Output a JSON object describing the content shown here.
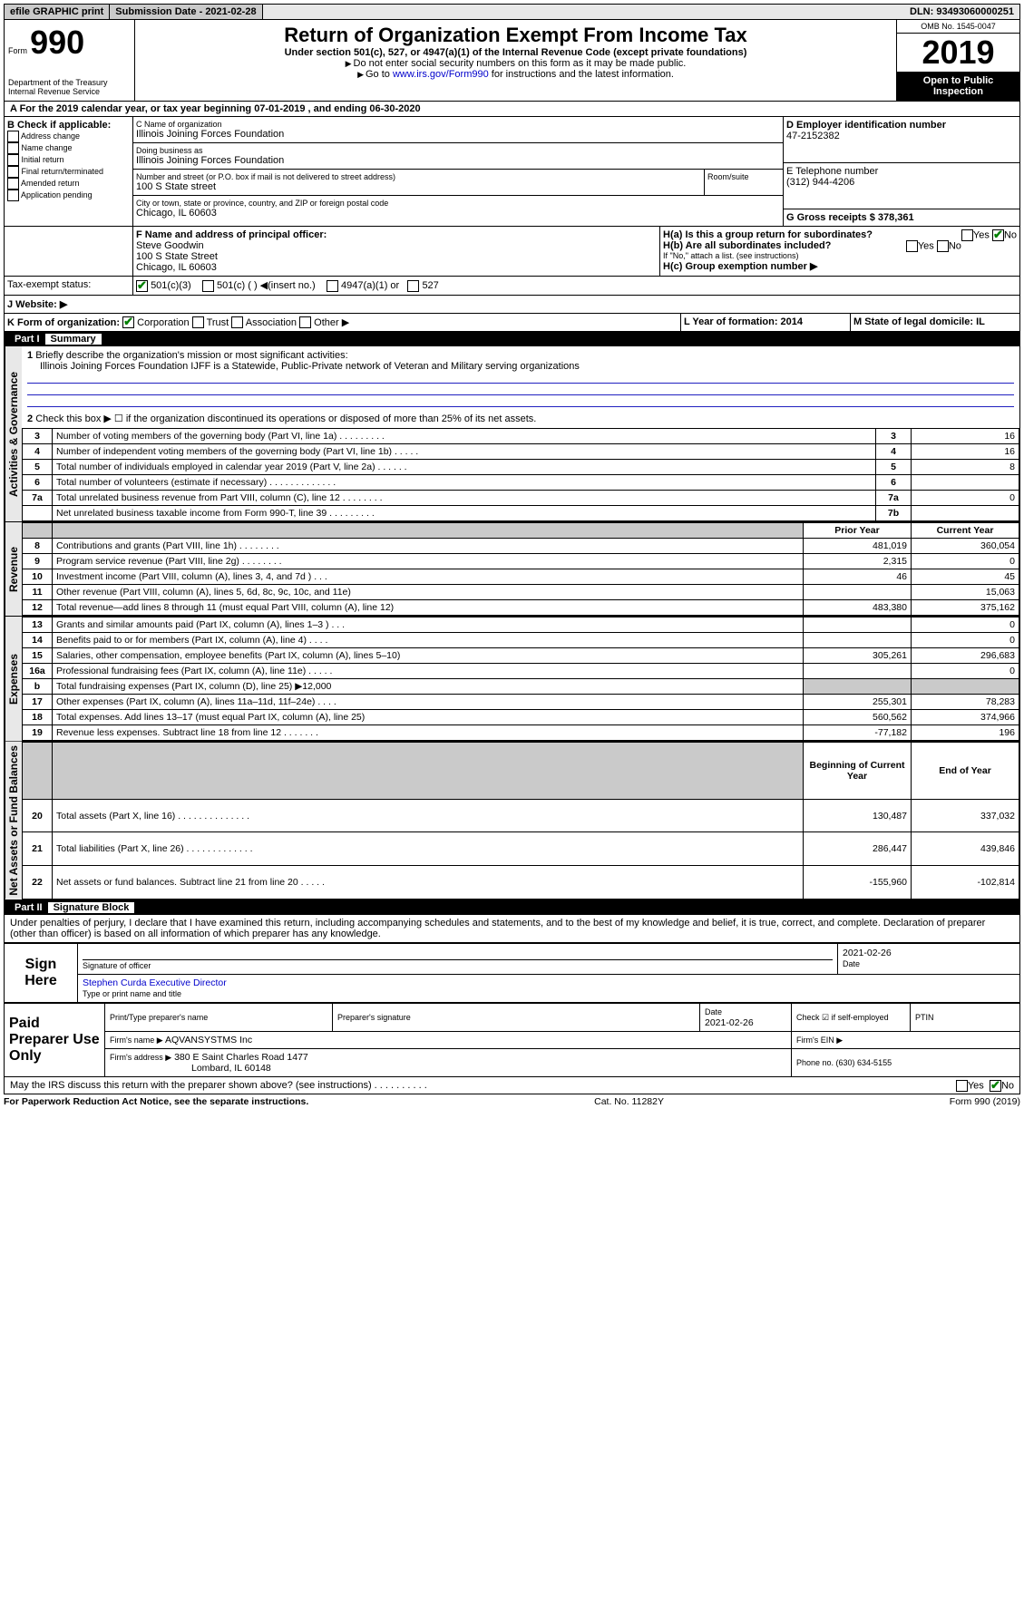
{
  "topbar": {
    "efile": "efile GRAPHIC print",
    "submission_label": "Submission Date - 2021-02-28",
    "dln": "DLN: 93493060000251"
  },
  "header": {
    "form_prefix": "Form",
    "form_number": "990",
    "title": "Return of Organization Exempt From Income Tax",
    "subtitle": "Under section 501(c), 527, or 4947(a)(1) of the Internal Revenue Code (except private foundations)",
    "note1": "Do not enter social security numbers on this form as it may be made public.",
    "note2_pre": "Go to ",
    "note2_link": "www.irs.gov/Form990",
    "note2_post": " for instructions and the latest information.",
    "dept": "Department of the Treasury",
    "irs": "Internal Revenue Service",
    "omb": "OMB No. 1545-0047",
    "year": "2019",
    "open": "Open to Public Inspection"
  },
  "period": {
    "text_a": "A For the 2019 calendar year, or tax year beginning 07-01-2019   , and ending 06-30-2020"
  },
  "boxB": {
    "label": "B Check if applicable:",
    "items": [
      "Address change",
      "Name change",
      "Initial return",
      "Final return/terminated",
      "Amended return",
      "Application pending"
    ]
  },
  "boxC": {
    "label": "C Name of organization",
    "name": "Illinois Joining Forces Foundation",
    "dba_label": "Doing business as",
    "dba": "Illinois Joining Forces Foundation",
    "addr_label": "Number and street (or P.O. box if mail is not delivered to street address)",
    "room_label": "Room/suite",
    "street": "100 S State street",
    "city_label": "City or town, state or province, country, and ZIP or foreign postal code",
    "city": "Chicago, IL  60603"
  },
  "boxD": {
    "label": "D Employer identification number",
    "value": "47-2152382"
  },
  "boxE": {
    "label": "E Telephone number",
    "value": "(312) 944-4206"
  },
  "boxG": {
    "label": "G Gross receipts $ 378,361"
  },
  "boxF": {
    "label": "F  Name and address of principal officer:",
    "name": "Steve Goodwin",
    "street": "100 S State Street",
    "city": "Chicago, IL  60603"
  },
  "boxH": {
    "ha": "H(a)  Is this a group return for subordinates?",
    "hb": "H(b)  Are all subordinates included?",
    "hb_note": "If \"No,\" attach a list. (see instructions)",
    "hc": "H(c)  Group exemption number ▶",
    "yes": "Yes",
    "no": "No"
  },
  "boxI": {
    "label": "Tax-exempt status:",
    "opt1": "501(c)(3)",
    "opt2": "501(c) (  ) ◀(insert no.)",
    "opt3": "4947(a)(1) or",
    "opt4": "527"
  },
  "boxJ": {
    "label": "J   Website: ▶"
  },
  "boxK": {
    "label": "K Form of organization:",
    "opts": [
      "Corporation",
      "Trust",
      "Association",
      "Other ▶"
    ]
  },
  "boxL": {
    "label": "L Year of formation: 2014"
  },
  "boxM": {
    "label": "M State of legal domicile: IL"
  },
  "part1": {
    "label": "Part I",
    "title": "Summary",
    "vert_ag": "Activities & Governance",
    "vert_rev": "Revenue",
    "vert_exp": "Expenses",
    "vert_net": "Net Assets or Fund Balances",
    "l1": "Briefly describe the organization's mission or most significant activities:",
    "l1_text": "Illinois Joining Forces Foundation IJFF is a Statewide, Public-Private network of Veteran and Military serving organizations",
    "l2": "Check this box ▶ ☐  if the organization discontinued its operations or disposed of more than 25% of its net assets.",
    "rows_ag": [
      {
        "n": "3",
        "d": "Number of voting members of the governing body (Part VI, line 1a)  .   .   .   .   .   .   .   .   .",
        "b": "3",
        "v": "16"
      },
      {
        "n": "4",
        "d": "Number of independent voting members of the governing body (Part VI, line 1b)  .   .   .   .   .",
        "b": "4",
        "v": "16"
      },
      {
        "n": "5",
        "d": "Total number of individuals employed in calendar year 2019 (Part V, line 2a)  .   .   .   .   .   .",
        "b": "5",
        "v": "8"
      },
      {
        "n": "6",
        "d": "Total number of volunteers (estimate if necessary)  .   .   .   .   .   .   .   .   .   .   .   .   .",
        "b": "6",
        "v": ""
      },
      {
        "n": "7a",
        "d": "Total unrelated business revenue from Part VIII, column (C), line 12  .   .   .   .   .   .   .   .",
        "b": "7a",
        "v": "0"
      },
      {
        "n": "",
        "d": "Net unrelated business taxable income from Form 990-T, line 39  .   .   .   .   .   .   .   .   .",
        "b": "7b",
        "v": ""
      }
    ],
    "col_py": "Prior Year",
    "col_cy": "Current Year",
    "rows_rev": [
      {
        "n": "8",
        "d": "Contributions and grants (Part VIII, line 1h)  .   .   .   .   .   .   .   .",
        "py": "481,019",
        "cy": "360,054"
      },
      {
        "n": "9",
        "d": "Program service revenue (Part VIII, line 2g)  .   .   .   .   .   .   .   .",
        "py": "2,315",
        "cy": "0"
      },
      {
        "n": "10",
        "d": "Investment income (Part VIII, column (A), lines 3, 4, and 7d )  .   .   .",
        "py": "46",
        "cy": "45"
      },
      {
        "n": "11",
        "d": "Other revenue (Part VIII, column (A), lines 5, 6d, 8c, 9c, 10c, and 11e)",
        "py": "",
        "cy": "15,063"
      },
      {
        "n": "12",
        "d": "Total revenue—add lines 8 through 11 (must equal Part VIII, column (A), line 12)",
        "py": "483,380",
        "cy": "375,162"
      }
    ],
    "rows_exp": [
      {
        "n": "13",
        "d": "Grants and similar amounts paid (Part IX, column (A), lines 1–3 )  .   .   .",
        "py": "",
        "cy": "0"
      },
      {
        "n": "14",
        "d": "Benefits paid to or for members (Part IX, column (A), line 4)  .   .   .   .",
        "py": "",
        "cy": "0"
      },
      {
        "n": "15",
        "d": "Salaries, other compensation, employee benefits (Part IX, column (A), lines 5–10)",
        "py": "305,261",
        "cy": "296,683"
      },
      {
        "n": "16a",
        "d": "Professional fundraising fees (Part IX, column (A), line 11e)  .   .   .   .   .",
        "py": "",
        "cy": "0"
      },
      {
        "n": "b",
        "d": "Total fundraising expenses (Part IX, column (D), line 25) ▶12,000",
        "py": "shade",
        "cy": "shade"
      },
      {
        "n": "17",
        "d": "Other expenses (Part IX, column (A), lines 11a–11d, 11f–24e)  .   .   .   .",
        "py": "255,301",
        "cy": "78,283"
      },
      {
        "n": "18",
        "d": "Total expenses. Add lines 13–17 (must equal Part IX, column (A), line 25)",
        "py": "560,562",
        "cy": "374,966"
      },
      {
        "n": "19",
        "d": "Revenue less expenses. Subtract line 18 from line 12  .   .   .   .   .   .   .",
        "py": "-77,182",
        "cy": "196"
      }
    ],
    "col_bcy": "Beginning of Current Year",
    "col_eoy": "End of Year",
    "rows_net": [
      {
        "n": "20",
        "d": "Total assets (Part X, line 16)  .   .   .   .   .   .   .   .   .   .   .   .   .   .",
        "py": "130,487",
        "cy": "337,032"
      },
      {
        "n": "21",
        "d": "Total liabilities (Part X, line 26)  .   .   .   .   .   .   .   .   .   .   .   .   .",
        "py": "286,447",
        "cy": "439,846"
      },
      {
        "n": "22",
        "d": "Net assets or fund balances. Subtract line 21 from line 20  .   .   .   .   .",
        "py": "-155,960",
        "cy": "-102,814"
      }
    ]
  },
  "part2": {
    "label": "Part II",
    "title": "Signature Block",
    "decl": "Under penalties of perjury, I declare that I have examined this return, including accompanying schedules and statements, and to the best of my knowledge and belief, it is true, correct, and complete. Declaration of preparer (other than officer) is based on all information of which preparer has any knowledge.",
    "sign_here": "Sign Here",
    "sig_officer": "Signature of officer",
    "date1": "2021-02-26",
    "date_label": "Date",
    "name_title": "Stephen Curda  Executive Director",
    "type_name": "Type or print name and title",
    "paid": "Paid Preparer Use Only",
    "pt_name_label": "Print/Type preparer's name",
    "pt_sig_label": "Preparer's signature",
    "pt_date": "2021-02-26",
    "pt_date_label": "Date",
    "check_self": "Check ☑ if self-employed",
    "ptin": "PTIN",
    "firm_name_label": "Firm's name   ▶",
    "firm_name": "AQVANSYSTMS Inc",
    "firm_ein": "Firm's EIN ▶",
    "firm_addr_label": "Firm's address ▶",
    "firm_addr": "380 E Saint Charles Road 1477",
    "firm_city": "Lombard, IL  60148",
    "phone_label": "Phone no. (630) 634-5155",
    "discuss": "May the IRS discuss this return with the preparer shown above? (see instructions)   .   .   .   .   .   .   .   .   .   .",
    "yes": "Yes",
    "no": "No"
  },
  "footer": {
    "pra": "For Paperwork Reduction Act Notice, see the separate instructions.",
    "cat": "Cat. No. 11282Y",
    "form": "Form 990 (2019)"
  }
}
